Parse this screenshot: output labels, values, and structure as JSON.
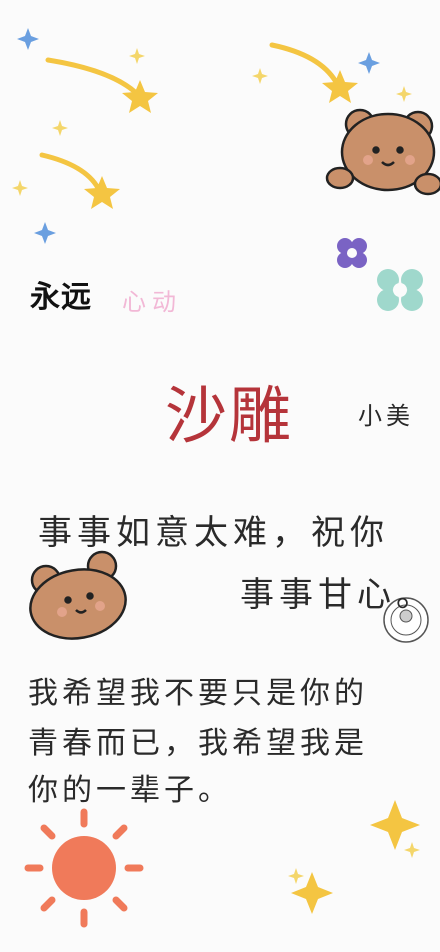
{
  "brand": {
    "main": "永远",
    "sub": "心动"
  },
  "title": {
    "main": "沙雕",
    "sub": "小美"
  },
  "quote": {
    "line1": "事事如意太难，祝你",
    "line2": "事事甘心。"
  },
  "paragraph": {
    "line1": "我希望我不要只是你的",
    "line2": "青春而已，我希望我是",
    "line3": "你的一辈子。"
  },
  "colors": {
    "title": "#b5343a",
    "sub_pink": "#f2b8d6",
    "star": "#f4c542",
    "sun": "#f07a5a",
    "flower_purple": "#7a63c4",
    "flower_teal": "#9fd8cc",
    "bear": "#c9906a"
  },
  "icons": [
    "shooting-star-icon",
    "sparkle-icon",
    "flower-icon",
    "bear-icon",
    "sun-icon",
    "stamp-icon"
  ]
}
